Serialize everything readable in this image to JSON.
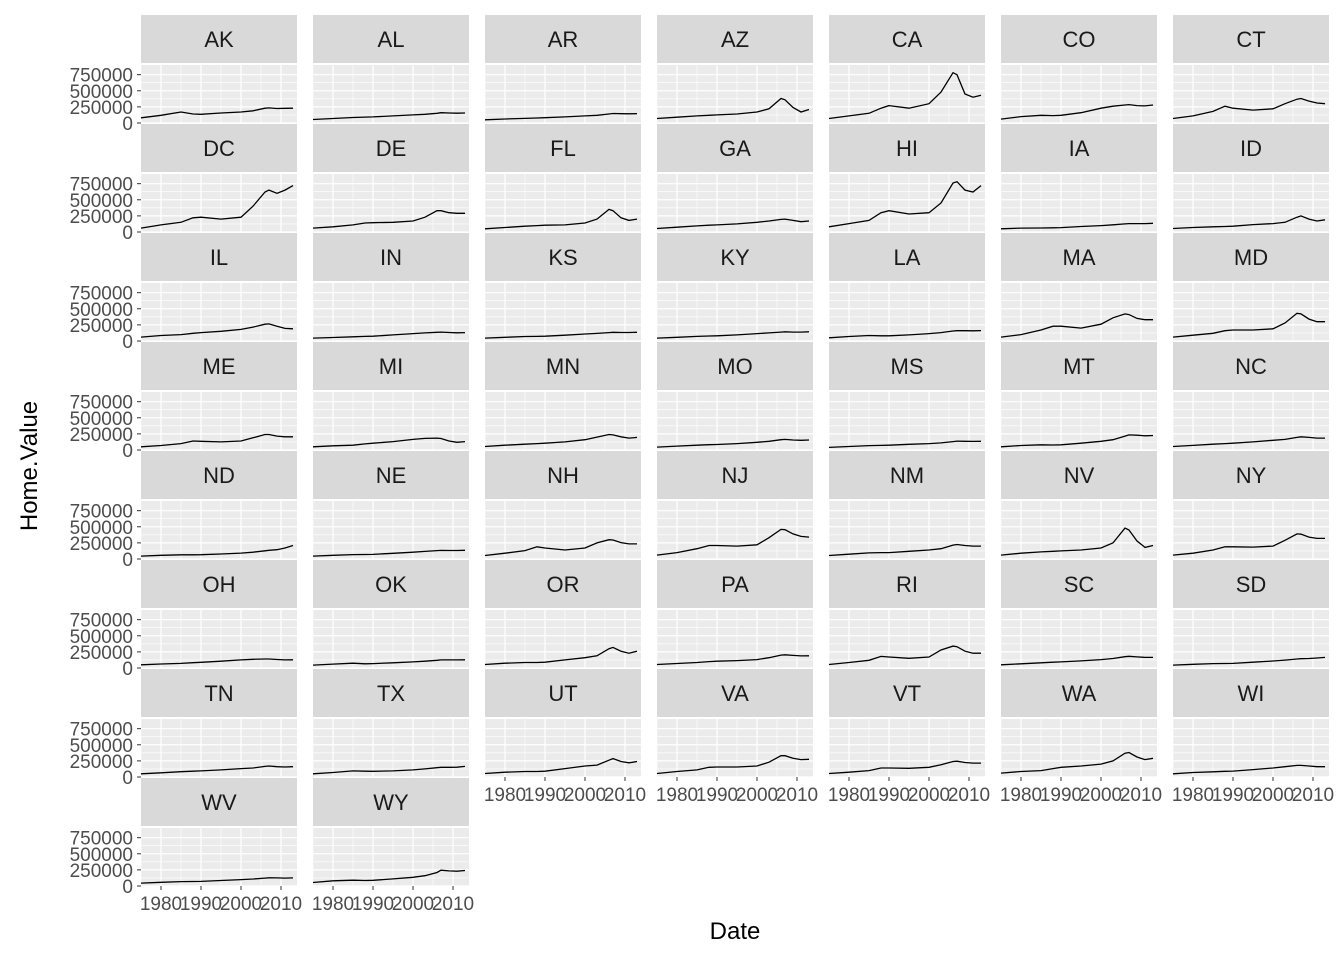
{
  "chart_data": {
    "type": "line",
    "layout": "facet-grid",
    "columns": 7,
    "xlabel": "Date",
    "ylabel": "Home.Value",
    "xlim": [
      1975,
      2014
    ],
    "ylim": [
      0,
      900000
    ],
    "x_ticks": [
      1980,
      1990,
      2000,
      2010
    ],
    "x_tick_labels": [
      "1980",
      "1990",
      "2000",
      "2010"
    ],
    "y_ticks": [
      0,
      250000,
      500000,
      750000
    ],
    "y_tick_labels": [
      "0",
      "250000",
      "500000",
      "750000"
    ],
    "grid": true,
    "panel_background": "#ebebeb",
    "strip_background": "#d9d9d9",
    "line_color": "#000000",
    "x": [
      1975,
      1980,
      1985,
      1988,
      1990,
      1995,
      2000,
      2003,
      2006,
      2007,
      2009,
      2011,
      2013
    ],
    "series": [
      {
        "name": "AK",
        "values": [
          80000,
          120000,
          170000,
          140000,
          135000,
          155000,
          170000,
          190000,
          230000,
          235000,
          225000,
          228000,
          230000
        ]
      },
      {
        "name": "AL",
        "values": [
          55000,
          70000,
          85000,
          92000,
          95000,
          110000,
          125000,
          135000,
          150000,
          160000,
          155000,
          152000,
          155000
        ]
      },
      {
        "name": "AR",
        "values": [
          50000,
          62000,
          72000,
          78000,
          82000,
          95000,
          110000,
          120000,
          140000,
          148000,
          145000,
          143000,
          145000
        ]
      },
      {
        "name": "AZ",
        "values": [
          70000,
          90000,
          110000,
          120000,
          125000,
          140000,
          170000,
          220000,
          380000,
          360000,
          240000,
          170000,
          210000
        ]
      },
      {
        "name": "CA",
        "values": [
          70000,
          110000,
          150000,
          230000,
          270000,
          230000,
          300000,
          480000,
          780000,
          750000,
          450000,
          400000,
          430000
        ]
      },
      {
        "name": "CO",
        "values": [
          60000,
          100000,
          120000,
          115000,
          120000,
          160000,
          230000,
          260000,
          280000,
          285000,
          270000,
          265000,
          280000
        ]
      },
      {
        "name": "CT",
        "values": [
          70000,
          110000,
          180000,
          260000,
          230000,
          200000,
          220000,
          300000,
          370000,
          380000,
          340000,
          310000,
          300000
        ]
      },
      {
        "name": "DC",
        "values": [
          60000,
          110000,
          150000,
          220000,
          230000,
          200000,
          230000,
          400000,
          620000,
          650000,
          600000,
          650000,
          720000
        ]
      },
      {
        "name": "DE",
        "values": [
          60000,
          80000,
          110000,
          140000,
          145000,
          150000,
          170000,
          230000,
          330000,
          330000,
          300000,
          290000,
          290000
        ]
      },
      {
        "name": "FL",
        "values": [
          50000,
          70000,
          90000,
          100000,
          105000,
          110000,
          140000,
          200000,
          350000,
          330000,
          220000,
          180000,
          200000
        ]
      },
      {
        "name": "GA",
        "values": [
          55000,
          75000,
          95000,
          105000,
          110000,
          125000,
          150000,
          170000,
          195000,
          200000,
          180000,
          160000,
          170000
        ]
      },
      {
        "name": "HI",
        "values": [
          80000,
          130000,
          180000,
          300000,
          330000,
          280000,
          300000,
          450000,
          760000,
          780000,
          650000,
          620000,
          720000
        ]
      },
      {
        "name": "IA",
        "values": [
          50000,
          60000,
          62000,
          65000,
          68000,
          85000,
          100000,
          112000,
          125000,
          130000,
          130000,
          130000,
          135000
        ]
      },
      {
        "name": "ID",
        "values": [
          55000,
          70000,
          80000,
          85000,
          90000,
          115000,
          130000,
          150000,
          230000,
          250000,
          200000,
          170000,
          190000
        ]
      },
      {
        "name": "IL",
        "values": [
          60000,
          85000,
          100000,
          120000,
          130000,
          150000,
          180000,
          215000,
          260000,
          265000,
          230000,
          195000,
          190000
        ]
      },
      {
        "name": "IN",
        "values": [
          45000,
          55000,
          65000,
          72000,
          75000,
          95000,
          115000,
          125000,
          135000,
          138000,
          132000,
          128000,
          130000
        ]
      },
      {
        "name": "KS",
        "values": [
          45000,
          58000,
          70000,
          72000,
          75000,
          90000,
          108000,
          118000,
          130000,
          135000,
          132000,
          132000,
          135000
        ]
      },
      {
        "name": "KY",
        "values": [
          45000,
          58000,
          72000,
          78000,
          80000,
          95000,
          115000,
          125000,
          138000,
          142000,
          138000,
          138000,
          142000
        ]
      },
      {
        "name": "LA",
        "values": [
          50000,
          70000,
          85000,
          80000,
          80000,
          95000,
          115000,
          130000,
          155000,
          160000,
          160000,
          158000,
          162000
        ]
      },
      {
        "name": "MA",
        "values": [
          60000,
          100000,
          170000,
          230000,
          230000,
          200000,
          260000,
          360000,
          420000,
          410000,
          350000,
          330000,
          330000
        ]
      },
      {
        "name": "MD",
        "values": [
          60000,
          90000,
          120000,
          160000,
          170000,
          170000,
          190000,
          280000,
          430000,
          420000,
          340000,
          300000,
          300000
        ]
      },
      {
        "name": "ME",
        "values": [
          50000,
          70000,
          100000,
          140000,
          135000,
          125000,
          140000,
          190000,
          240000,
          240000,
          215000,
          205000,
          205000
        ]
      },
      {
        "name": "MI",
        "values": [
          50000,
          65000,
          75000,
          95000,
          105000,
          130000,
          165000,
          180000,
          185000,
          178000,
          140000,
          120000,
          130000
        ]
      },
      {
        "name": "MN",
        "values": [
          55000,
          75000,
          90000,
          100000,
          105000,
          125000,
          160000,
          200000,
          240000,
          235000,
          205000,
          185000,
          195000
        ]
      },
      {
        "name": "MO",
        "values": [
          45000,
          60000,
          75000,
          82000,
          85000,
          100000,
          120000,
          135000,
          160000,
          165000,
          155000,
          150000,
          155000
        ]
      },
      {
        "name": "MS",
        "values": [
          40000,
          55000,
          68000,
          72000,
          75000,
          88000,
          100000,
          110000,
          130000,
          138000,
          135000,
          133000,
          135000
        ]
      },
      {
        "name": "MT",
        "values": [
          50000,
          70000,
          80000,
          78000,
          80000,
          105000,
          135000,
          160000,
          215000,
          235000,
          230000,
          220000,
          225000
        ]
      },
      {
        "name": "NC",
        "values": [
          55000,
          72000,
          90000,
          100000,
          105000,
          125000,
          150000,
          165000,
          195000,
          205000,
          195000,
          185000,
          185000
        ]
      },
      {
        "name": "ND",
        "values": [
          45000,
          58000,
          65000,
          65000,
          66000,
          78000,
          92000,
          105000,
          128000,
          135000,
          145000,
          170000,
          210000
        ]
      },
      {
        "name": "NE",
        "values": [
          45000,
          58000,
          68000,
          70000,
          72000,
          88000,
          105000,
          118000,
          130000,
          133000,
          132000,
          132000,
          135000
        ]
      },
      {
        "name": "NH",
        "values": [
          55000,
          90000,
          130000,
          190000,
          170000,
          140000,
          170000,
          250000,
          300000,
          295000,
          255000,
          235000,
          235000
        ]
      },
      {
        "name": "NJ",
        "values": [
          60000,
          100000,
          160000,
          210000,
          210000,
          200000,
          220000,
          330000,
          460000,
          455000,
          390000,
          350000,
          340000
        ]
      },
      {
        "name": "NM",
        "values": [
          55000,
          75000,
          95000,
          100000,
          100000,
          120000,
          140000,
          160000,
          215000,
          225000,
          210000,
          200000,
          200000
        ]
      },
      {
        "name": "NV",
        "values": [
          60000,
          90000,
          110000,
          120000,
          125000,
          140000,
          170000,
          250000,
          480000,
          450000,
          280000,
          180000,
          210000
        ]
      },
      {
        "name": "NY",
        "values": [
          60000,
          90000,
          140000,
          190000,
          190000,
          185000,
          200000,
          290000,
          390000,
          385000,
          340000,
          320000,
          320000
        ]
      },
      {
        "name": "OH",
        "values": [
          50000,
          62000,
          72000,
          82000,
          88000,
          105000,
          125000,
          135000,
          140000,
          140000,
          132000,
          125000,
          128000
        ]
      },
      {
        "name": "OK",
        "values": [
          45000,
          60000,
          75000,
          65000,
          68000,
          80000,
          95000,
          105000,
          120000,
          125000,
          125000,
          125000,
          128000
        ]
      },
      {
        "name": "OR",
        "values": [
          55000,
          75000,
          85000,
          85000,
          90000,
          125000,
          160000,
          190000,
          300000,
          320000,
          260000,
          230000,
          260000
        ]
      },
      {
        "name": "PA",
        "values": [
          55000,
          70000,
          85000,
          100000,
          105000,
          115000,
          130000,
          160000,
          200000,
          205000,
          195000,
          188000,
          190000
        ]
      },
      {
        "name": "RI",
        "values": [
          55000,
          85000,
          120000,
          180000,
          170000,
          150000,
          170000,
          280000,
          340000,
          330000,
          260000,
          230000,
          230000
        ]
      },
      {
        "name": "SC",
        "values": [
          50000,
          65000,
          80000,
          90000,
          95000,
          110000,
          130000,
          148000,
          175000,
          182000,
          172000,
          165000,
          165000
        ]
      },
      {
        "name": "SD",
        "values": [
          45000,
          58000,
          68000,
          70000,
          72000,
          90000,
          108000,
          122000,
          140000,
          145000,
          148000,
          155000,
          165000
        ]
      },
      {
        "name": "TN",
        "values": [
          50000,
          65000,
          82000,
          90000,
          95000,
          110000,
          130000,
          140000,
          165000,
          170000,
          160000,
          155000,
          160000
        ]
      },
      {
        "name": "TX",
        "values": [
          50000,
          70000,
          95000,
          90000,
          88000,
          95000,
          110000,
          125000,
          145000,
          150000,
          150000,
          152000,
          165000
        ]
      },
      {
        "name": "UT",
        "values": [
          55000,
          75000,
          85000,
          85000,
          90000,
          130000,
          170000,
          185000,
          260000,
          285000,
          240000,
          220000,
          240000
        ]
      },
      {
        "name": "VA",
        "values": [
          55000,
          85000,
          110000,
          150000,
          155000,
          155000,
          170000,
          230000,
          330000,
          330000,
          290000,
          270000,
          275000
        ]
      },
      {
        "name": "VT",
        "values": [
          55000,
          75000,
          100000,
          140000,
          140000,
          135000,
          150000,
          190000,
          240000,
          245000,
          225000,
          215000,
          215000
        ]
      },
      {
        "name": "WA",
        "values": [
          60000,
          85000,
          100000,
          130000,
          150000,
          170000,
          200000,
          250000,
          370000,
          380000,
          310000,
          270000,
          290000
        ]
      },
      {
        "name": "WI",
        "values": [
          50000,
          70000,
          80000,
          88000,
          92000,
          115000,
          140000,
          160000,
          180000,
          180000,
          170000,
          160000,
          160000
        ]
      },
      {
        "name": "WV",
        "values": [
          45000,
          58000,
          68000,
          70000,
          72000,
          85000,
          100000,
          108000,
          122000,
          128000,
          125000,
          123000,
          125000
        ]
      },
      {
        "name": "WY",
        "values": [
          55000,
          80000,
          90000,
          85000,
          88000,
          110000,
          135000,
          160000,
          210000,
          245000,
          235000,
          230000,
          240000
        ]
      }
    ]
  }
}
